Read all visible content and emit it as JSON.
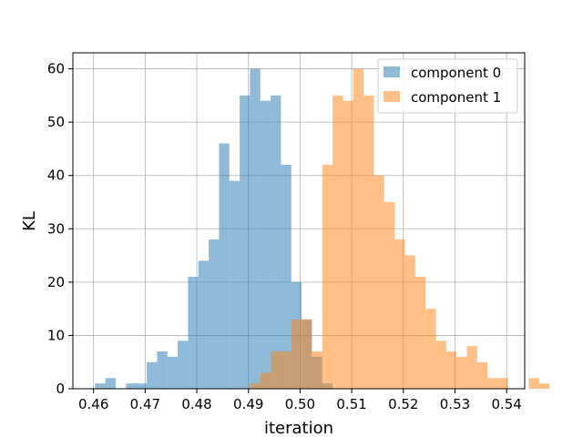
{
  "chart_data": {
    "type": "bar",
    "title": "",
    "xlabel": "iteration",
    "ylabel": "KL",
    "xlim": [
      0.456,
      0.5435
    ],
    "ylim": [
      0,
      63
    ],
    "xticks": [
      0.46,
      0.47,
      0.48,
      0.49,
      0.5,
      0.51,
      0.52,
      0.53,
      0.54
    ],
    "xtick_labels": [
      "0.46",
      "0.47",
      "0.48",
      "0.49",
      "0.50",
      "0.51",
      "0.52",
      "0.53",
      "0.54"
    ],
    "yticks": [
      0,
      10,
      20,
      30,
      40,
      50,
      60
    ],
    "ytick_labels": [
      "0",
      "10",
      "20",
      "30",
      "40",
      "50",
      "60"
    ],
    "grid": true,
    "legend_position": "top-right",
    "series": [
      {
        "name": "component 0",
        "color": "#1f77b4",
        "bin_start": 0.4603,
        "bin_width": 0.002,
        "counts": [
          1,
          2,
          0,
          1,
          1,
          5,
          7,
          6,
          9,
          21,
          24,
          28,
          46,
          39,
          55,
          60,
          54,
          55,
          42,
          20,
          13,
          6,
          1
        ]
      },
      {
        "name": "component 1",
        "color": "#ff7f0e",
        "bin_start": 0.4903,
        "bin_width": 0.002,
        "counts": [
          1,
          3,
          7,
          7,
          13,
          13,
          7,
          42,
          55,
          54,
          60,
          55,
          40,
          35,
          28,
          25,
          21,
          15,
          9,
          7,
          6,
          8,
          5,
          2,
          2,
          0,
          0,
          2,
          1
        ]
      }
    ]
  }
}
